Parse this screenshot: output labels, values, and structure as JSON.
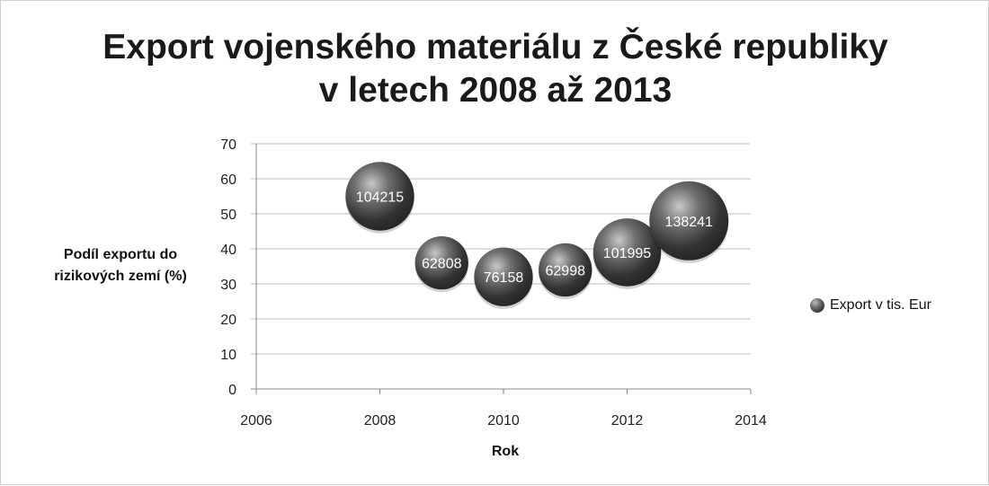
{
  "chart_data": {
    "type": "bubble",
    "title_lines": [
      "Export vojenského materiálu z České republiky",
      "v letech 2008 až 2013"
    ],
    "xlabel": "Rok",
    "ylabel_lines": [
      "Podíl exportu do",
      "rizikových zemí (%)"
    ],
    "xlim": [
      2006,
      2014
    ],
    "ylim": [
      0,
      70
    ],
    "xticks": [
      "2006",
      "2008",
      "2010",
      "2012",
      "2014"
    ],
    "yticks": [
      "0",
      "10",
      "20",
      "30",
      "40",
      "50",
      "60",
      "70"
    ],
    "grid": "horizontal",
    "legend_position": "right",
    "series": [
      {
        "name": "Export v tis. Eur",
        "points": [
          {
            "x": 2008,
            "y": 55,
            "size": 104215,
            "label": "104215"
          },
          {
            "x": 2009,
            "y": 36,
            "size": 62808,
            "label": "62808"
          },
          {
            "x": 2010,
            "y": 32,
            "size": 76158,
            "label": "76158"
          },
          {
            "x": 2011,
            "y": 34,
            "size": 62998,
            "label": "62998"
          },
          {
            "x": 2012,
            "y": 39,
            "size": 101995,
            "label": "101995"
          },
          {
            "x": 2013,
            "y": 48,
            "size": 138241,
            "label": "138241"
          }
        ]
      }
    ]
  }
}
